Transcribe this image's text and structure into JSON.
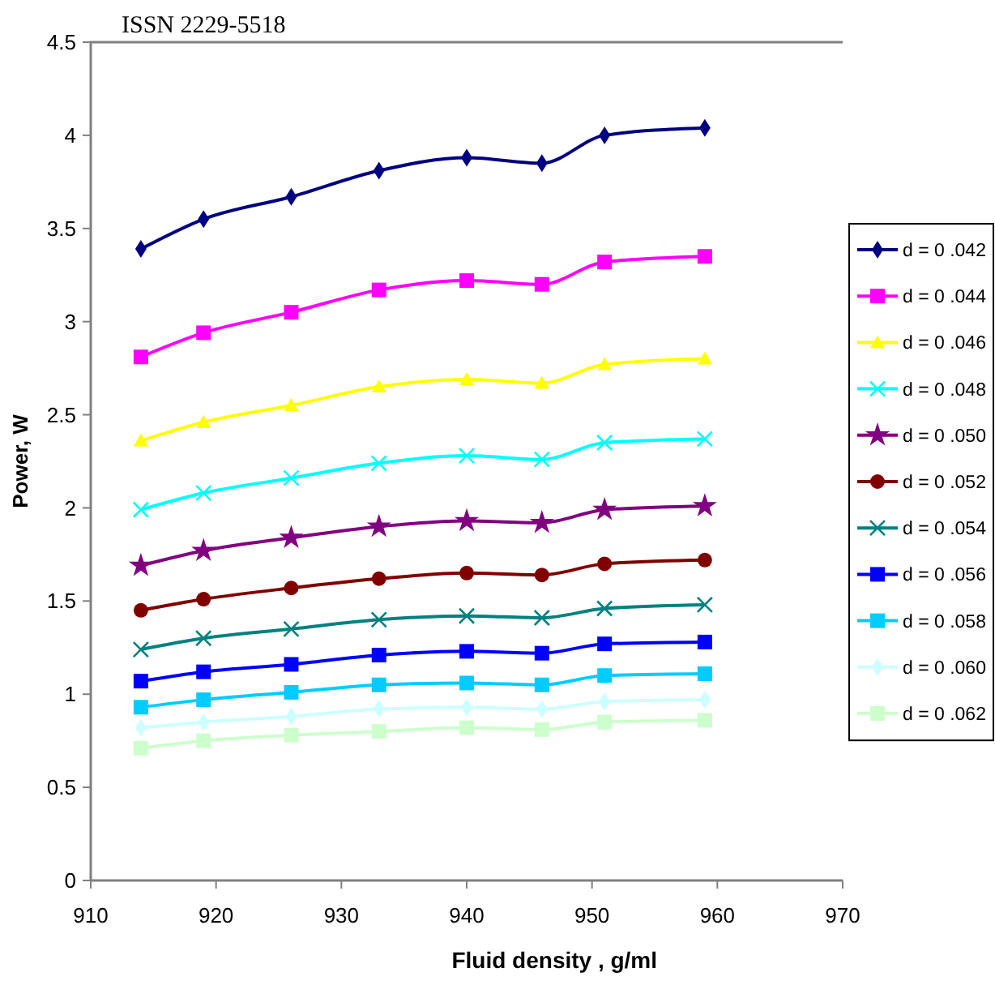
{
  "chart_data": {
    "type": "line",
    "xlabel": "Fluid density , g/ml",
    "ylabel": "Power, W",
    "annotations": [
      "ISSN 2229-5518"
    ],
    "x": [
      914,
      919,
      926,
      933,
      940,
      946,
      951,
      959
    ],
    "xlim": [
      910,
      970
    ],
    "xticks": [
      910,
      920,
      930,
      940,
      950,
      960,
      970
    ],
    "ylim": [
      0,
      4.5
    ],
    "yticks": [
      0,
      0.5,
      1,
      1.5,
      2,
      2.5,
      3,
      3.5,
      4,
      4.5
    ],
    "grid": false,
    "legend": "right",
    "line_style": "solid",
    "series": [
      {
        "name": "d = 0 .042",
        "color": "#000080",
        "marker": "diamond",
        "values": [
          3.39,
          3.55,
          3.67,
          3.81,
          3.88,
          3.85,
          4.0,
          4.04
        ]
      },
      {
        "name": "d = 0 .044",
        "color": "#ff00ff",
        "marker": "square",
        "values": [
          2.81,
          2.94,
          3.05,
          3.17,
          3.22,
          3.2,
          3.32,
          3.35
        ]
      },
      {
        "name": "d = 0 .046",
        "color": "#ffff00",
        "marker": "triangle",
        "values": [
          2.36,
          2.46,
          2.55,
          2.65,
          2.69,
          2.67,
          2.77,
          2.8
        ]
      },
      {
        "name": "d = 0 .048",
        "color": "#00ffff",
        "marker": "cross",
        "values": [
          1.99,
          2.08,
          2.16,
          2.24,
          2.28,
          2.26,
          2.35,
          2.37
        ]
      },
      {
        "name": "d = 0 .050",
        "color": "#800080",
        "marker": "star",
        "values": [
          1.69,
          1.77,
          1.84,
          1.9,
          1.93,
          1.92,
          1.99,
          2.01
        ]
      },
      {
        "name": "d = 0 .052",
        "color": "#800000",
        "marker": "circle",
        "values": [
          1.45,
          1.51,
          1.57,
          1.62,
          1.65,
          1.64,
          1.7,
          1.72
        ]
      },
      {
        "name": "d = 0 .054",
        "color": "#008080",
        "marker": "cross",
        "values": [
          1.24,
          1.3,
          1.35,
          1.4,
          1.42,
          1.41,
          1.46,
          1.48
        ]
      },
      {
        "name": "d = 0 .056",
        "color": "#0000ff",
        "marker": "square",
        "values": [
          1.07,
          1.12,
          1.16,
          1.21,
          1.23,
          1.22,
          1.27,
          1.28
        ]
      },
      {
        "name": "d = 0 .058",
        "color": "#00ccff",
        "marker": "square",
        "values": [
          0.93,
          0.97,
          1.01,
          1.05,
          1.06,
          1.05,
          1.1,
          1.11
        ]
      },
      {
        "name": "d = 0 .060",
        "color": "#ccffff",
        "marker": "diamond",
        "values": [
          0.82,
          0.85,
          0.88,
          0.92,
          0.93,
          0.92,
          0.96,
          0.97
        ]
      },
      {
        "name": "d = 0 .062",
        "color": "#ccffcc",
        "marker": "square",
        "values": [
          0.71,
          0.75,
          0.78,
          0.8,
          0.82,
          0.81,
          0.85,
          0.86
        ]
      }
    ]
  }
}
